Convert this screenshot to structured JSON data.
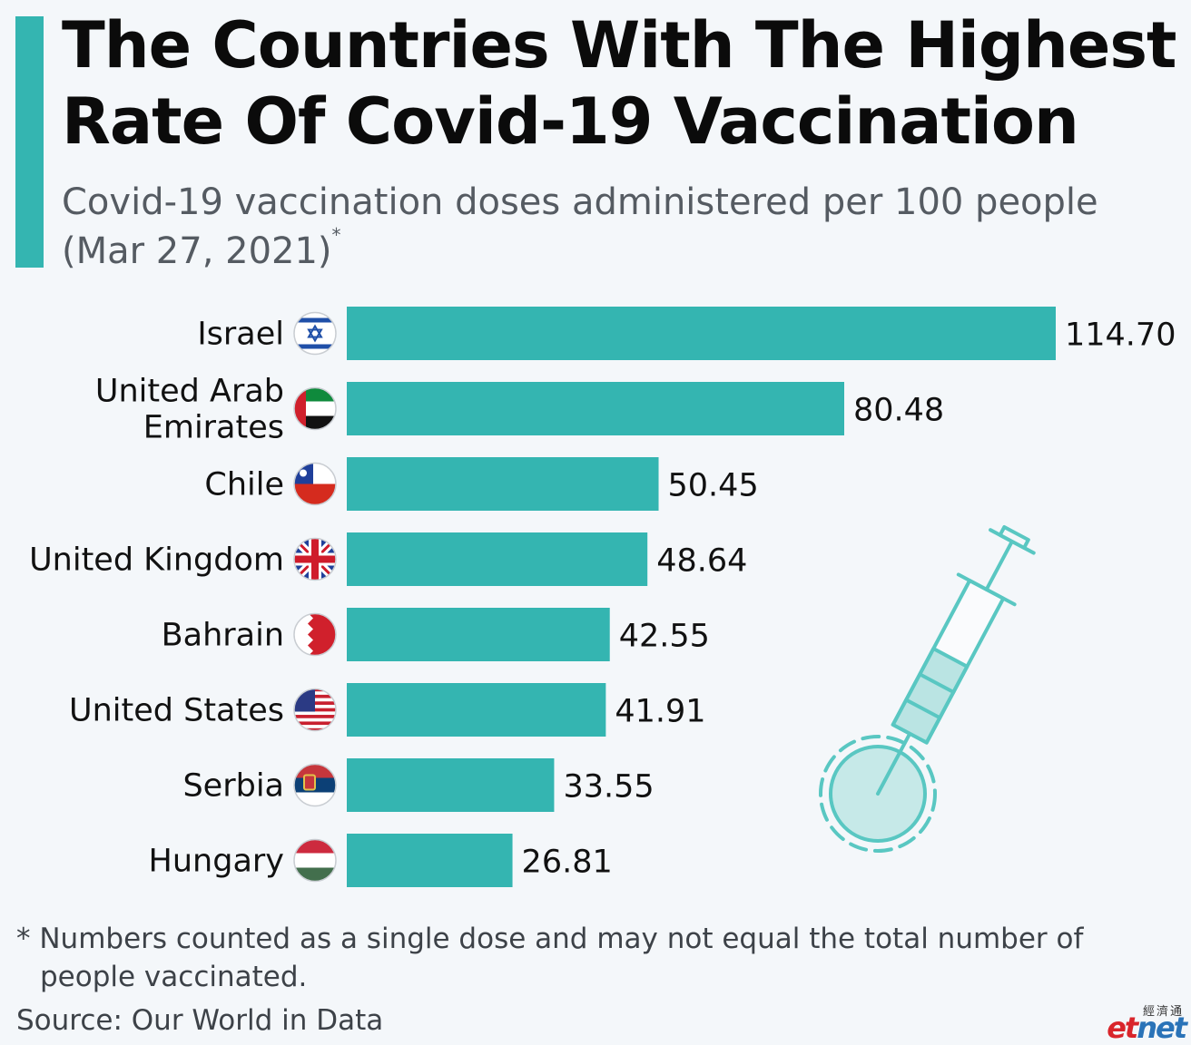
{
  "title": "The Countries With The Highest Rate Of Covid-19 Vaccination",
  "subtitle": "Covid-19 vaccination doses administered per 100 people (Mar 27, 2021)",
  "subtitle_mark": "*",
  "footnote": "* Numbers counted as a single dose and may not equal the total number of people vaccinated.",
  "source": "Source: Our World in Data",
  "logo": {
    "chinese": "經濟通",
    "part1": "et",
    "part2": "net"
  },
  "colors": {
    "accent": "#34b5b1",
    "bar": "#34b5b1",
    "background": "#f4f7fa"
  },
  "chart_data": {
    "type": "bar",
    "orientation": "horizontal",
    "title": "The Countries With The Highest Rate Of Covid-19 Vaccination",
    "subtitle": "Covid-19 vaccination doses administered per 100 people (Mar 27, 2021)*",
    "categories": [
      "Israel",
      "United Arab Emirates",
      "Chile",
      "United Kingdom",
      "Bahrain",
      "United States",
      "Serbia",
      "Hungary"
    ],
    "label_lines": [
      [
        "Israel"
      ],
      [
        "United Arab",
        "Emirates"
      ],
      [
        "Chile"
      ],
      [
        "United Kingdom"
      ],
      [
        "Bahrain"
      ],
      [
        "United States"
      ],
      [
        "Serbia"
      ],
      [
        "Hungary"
      ]
    ],
    "values": [
      114.7,
      80.48,
      50.45,
      48.64,
      42.55,
      41.91,
      33.55,
      26.81
    ],
    "value_labels": [
      "114.70",
      "80.48",
      "50.45",
      "48.64",
      "42.55",
      "41.91",
      "33.55",
      "26.81"
    ],
    "flags": [
      "israel-flag-icon",
      "uae-flag-icon",
      "chile-flag-icon",
      "uk-flag-icon",
      "bahrain-flag-icon",
      "us-flag-icon",
      "serbia-flag-icon",
      "hungary-flag-icon"
    ],
    "xlim": [
      0,
      114.7
    ],
    "grid": false,
    "legend": "none",
    "decoration": "syringe-icon"
  }
}
